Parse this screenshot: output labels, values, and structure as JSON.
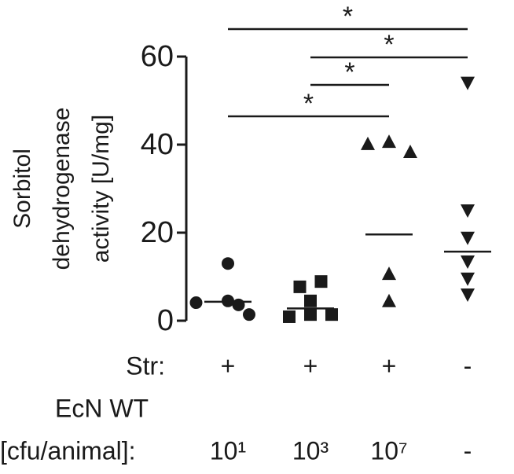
{
  "chart_data": {
    "type": "dot",
    "ylabel": [
      "Sorbitol",
      "dehydrogenase",
      "activity [U/mg]"
    ],
    "ylim": [
      0,
      60
    ],
    "yticks": [
      0,
      20,
      40,
      60
    ],
    "series": [
      {
        "marker": "circle",
        "color": "#1a1a1a",
        "values": [
          13,
          4.1,
          4.5,
          3.6,
          1.4
        ],
        "mean": 4.3
      },
      {
        "marker": "square",
        "color": "#1a1a1a",
        "values": [
          7.7,
          8.9,
          4.5,
          0.9,
          1.4,
          1.4
        ],
        "mean": 2.8
      },
      {
        "marker": "triangle-up",
        "color": "#1a1a1a",
        "values": [
          40.2,
          40.7,
          38.4,
          10.7,
          4.5
        ],
        "mean": 19.6
      },
      {
        "marker": "triangle-down",
        "color": "#1a1a1a",
        "values": [
          54,
          25,
          18.8,
          13.4,
          9.5,
          5.9
        ],
        "mean": 15.7
      }
    ],
    "brackets": [
      {
        "from": 0,
        "to": 3,
        "label": "*"
      },
      {
        "from": 1,
        "to": 3,
        "label": "*"
      },
      {
        "from": 1,
        "to": 2,
        "label": "*"
      },
      {
        "from": 0,
        "to": 2,
        "label": "*"
      }
    ],
    "table": {
      "row_labels": [
        "Str:",
        "EcN WT",
        "[cfu/animal]:"
      ],
      "str": [
        "+",
        "+",
        "+",
        "-"
      ],
      "cfu": [
        "10¹",
        "10³",
        "10⁷",
        "-"
      ]
    }
  }
}
